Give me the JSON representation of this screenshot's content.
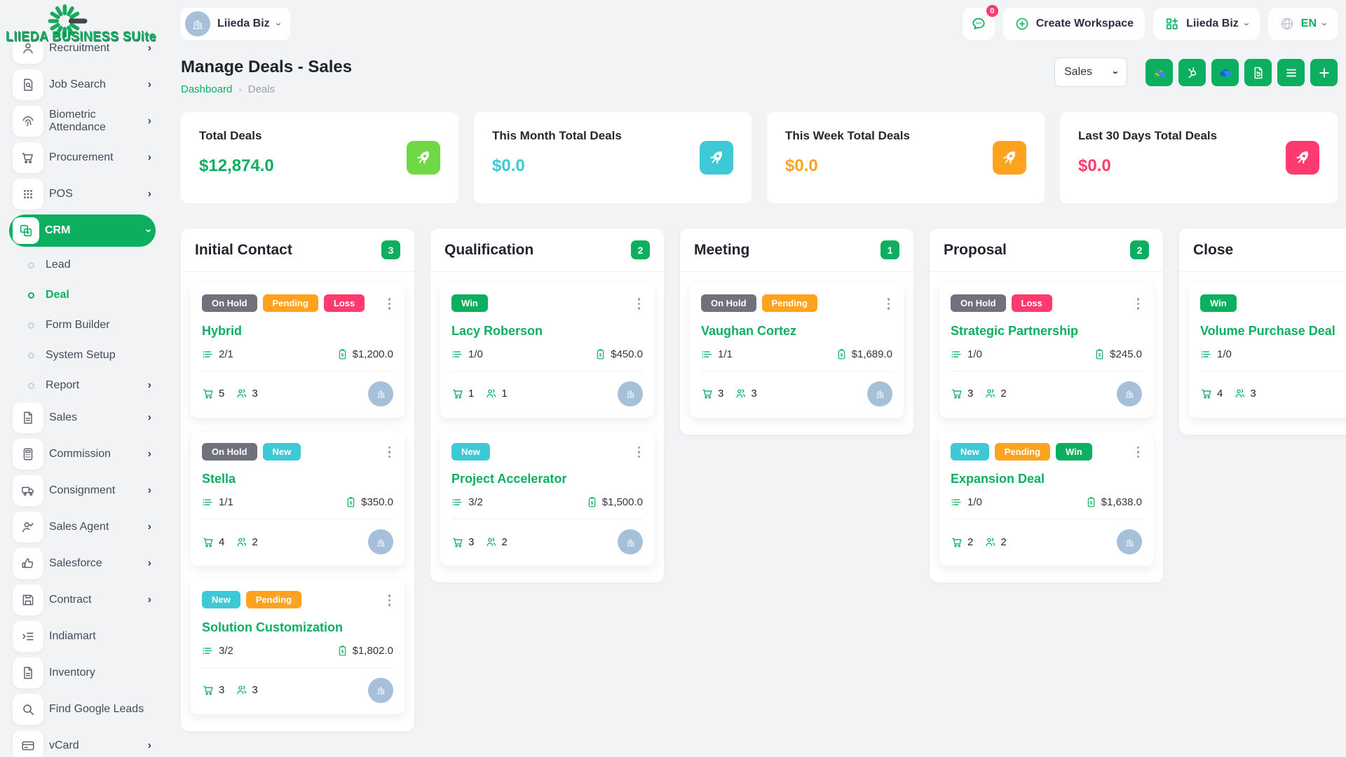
{
  "theme": {
    "primary": "#0CAF60",
    "lime": "#6FD943",
    "teal": "#3EC9D6",
    "orange": "#FFA21D",
    "pink": "#FF3A6E",
    "gray_badge": "#6F727D",
    "avatar_bg": "#a7c0d9"
  },
  "icons": {
    "chevron": "›",
    "breadcrumb_separator": "›"
  },
  "logo": {
    "title": "LIIEDA BUSINESS SUite",
    "mark": "spinner-logo"
  },
  "topbar": {
    "workspace_pill_label": "Liieda Biz",
    "chat_badge": "0",
    "create_workspace_label": "Create Workspace",
    "workspace_dropdown_label": "Liieda Biz",
    "language_label": "EN"
  },
  "page": {
    "title": "Manage Deals - Sales",
    "breadcrumb": [
      {
        "label": "Dashboard",
        "current": false
      },
      {
        "label": "Deals",
        "current": true
      }
    ],
    "pipeline_select": "Sales",
    "toolbar_buttons": [
      {
        "name": "google-ads",
        "bg": "#0CAF60"
      },
      {
        "name": "hubspot",
        "bg": "#0CAF60"
      },
      {
        "name": "cloud-import",
        "bg": "#0CAF60"
      },
      {
        "name": "export-file",
        "bg": "#0CAF60"
      },
      {
        "name": "list-view",
        "bg": "#0CAF60"
      },
      {
        "name": "add-deal",
        "bg": "#0CAF60"
      }
    ]
  },
  "stats": [
    {
      "label": "Total Deals",
      "value": "$12,874.0",
      "value_color": "#0CAF60",
      "icon": "rocket",
      "icon_bg": "#6FD943"
    },
    {
      "label": "This Month Total Deals",
      "value": "$0.0",
      "value_color": "#3EC9D6",
      "icon": "rocket",
      "icon_bg": "#3EC9D6"
    },
    {
      "label": "This Week Total Deals",
      "value": "$0.0",
      "value_color": "#FFA21D",
      "icon": "rocket",
      "icon_bg": "#FFA21D"
    },
    {
      "label": "Last 30 Days Total Deals",
      "value": "$0.0",
      "value_color": "#FF3A6E",
      "icon": "rocket",
      "icon_bg": "#FF3A6E"
    }
  ],
  "badge_colors": {
    "On Hold": "#6F727D",
    "Pending": "#FFA21D",
    "Loss": "#FF3A6E",
    "New": "#3EC9D6",
    "Win": "#0CAF60"
  },
  "board": {
    "columns": [
      {
        "name": "Initial Contact",
        "count": "3",
        "cards": [
          {
            "title": "Hybrid",
            "badges": [
              "On Hold",
              "Pending",
              "Loss"
            ],
            "tasks": "2/1",
            "amount": "$1,200.0",
            "cart": "5",
            "users": "3"
          },
          {
            "title": "Stella",
            "badges": [
              "On Hold",
              "New"
            ],
            "tasks": "1/1",
            "amount": "$350.0",
            "cart": "4",
            "users": "2"
          },
          {
            "title": "Solution Customization",
            "badges": [
              "New",
              "Pending"
            ],
            "tasks": "3/2",
            "amount": "$1,802.0",
            "cart": "3",
            "users": "3"
          }
        ]
      },
      {
        "name": "Qualification",
        "count": "2",
        "cards": [
          {
            "title": "Lacy Roberson",
            "badges": [
              "Win"
            ],
            "tasks": "1/0",
            "amount": "$450.0",
            "cart": "1",
            "users": "1"
          },
          {
            "title": "Project Accelerator",
            "badges": [
              "New"
            ],
            "tasks": "3/2",
            "amount": "$1,500.0",
            "cart": "3",
            "users": "2"
          }
        ]
      },
      {
        "name": "Meeting",
        "count": "1",
        "cards": [
          {
            "title": "Vaughan Cortez",
            "badges": [
              "On Hold",
              "Pending"
            ],
            "tasks": "1/1",
            "amount": "$1,689.0",
            "cart": "3",
            "users": "3"
          }
        ]
      },
      {
        "name": "Proposal",
        "count": "2",
        "cards": [
          {
            "title": "Strategic Partnership",
            "badges": [
              "On Hold",
              "Loss"
            ],
            "tasks": "1/0",
            "amount": "$245.0",
            "cart": "3",
            "users": "2"
          },
          {
            "title": "Expansion Deal",
            "badges": [
              "New",
              "Pending",
              "Win"
            ],
            "tasks": "1/0",
            "amount": "$1,638.0",
            "cart": "2",
            "users": "2"
          }
        ]
      },
      {
        "name": "Close",
        "count": "",
        "cards": [
          {
            "title": "Volume Purchase Deal",
            "badges": [
              "Win"
            ],
            "tasks": "1/0",
            "amount": "",
            "cart": "4",
            "users": "3"
          }
        ]
      }
    ]
  },
  "sidebar": {
    "items": [
      {
        "label": "Recruitment",
        "icon": "person",
        "chevron": true
      },
      {
        "label": "Job Search",
        "icon": "doc-search",
        "chevron": true
      },
      {
        "label": "Biometric Attendance",
        "icon": "fingerprint",
        "chevron": true
      },
      {
        "label": "Procurement",
        "icon": "cart",
        "chevron": true
      },
      {
        "label": "POS",
        "icon": "grid-dots",
        "chevron": true
      },
      {
        "label": "CRM",
        "icon": "crm",
        "chevron": true,
        "active": true,
        "expanded": true
      },
      {
        "label": "Lead",
        "sub": true
      },
      {
        "label": "Deal",
        "sub": true,
        "active": true
      },
      {
        "label": "Form Builder",
        "sub": true
      },
      {
        "label": "System Setup",
        "sub": true
      },
      {
        "label": "Report",
        "sub": true,
        "chevron": true
      },
      {
        "label": "Sales",
        "icon": "file",
        "chevron": true
      },
      {
        "label": "Commission",
        "icon": "calculator",
        "chevron": true
      },
      {
        "label": "Consignment",
        "icon": "truck",
        "chevron": true
      },
      {
        "label": "Sales Agent",
        "icon": "person-check",
        "chevron": true
      },
      {
        "label": "Salesforce",
        "icon": "thumbs-up",
        "chevron": true
      },
      {
        "label": "Contract",
        "icon": "floppy",
        "chevron": true
      },
      {
        "label": "Indiamart",
        "icon": "list-arrow",
        "chevron": false
      },
      {
        "label": "Inventory",
        "icon": "file",
        "chevron": false
      },
      {
        "label": "Find Google Leads",
        "icon": "search",
        "chevron": false
      },
      {
        "label": "vCard",
        "icon": "card",
        "chevron": true
      }
    ]
  }
}
